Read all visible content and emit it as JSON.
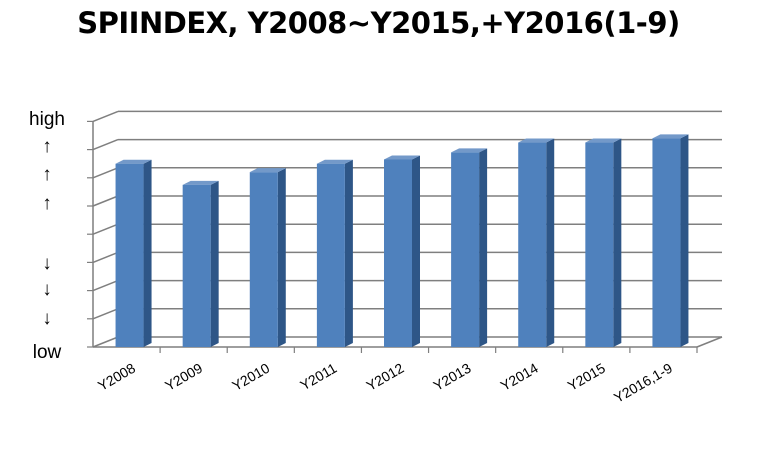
{
  "chart_data": {
    "type": "bar",
    "title": "SPIINDEX, Y2008~Y2015,+Y2016(1-9)",
    "categories": [
      "Y2008",
      "Y2009",
      "Y2010",
      "Y2011",
      "Y2012",
      "Y2013",
      "Y2014",
      "Y2015",
      "Y2016,1-9"
    ],
    "values": [
      65,
      57.5,
      62,
      65,
      66.5,
      69,
      72.5,
      72.5,
      74
    ],
    "ylim": [
      0,
      80
    ],
    "y_axis_labels": [
      "high",
      "↑",
      "↑",
      "↑",
      "↓",
      "↓",
      "↓",
      "low"
    ],
    "grid": true,
    "style": "3d-column",
    "colors": {
      "bar_front": "#4f81bd",
      "bar_side": "#2e5687",
      "bar_top": "#7399c9",
      "grid": "#7f7f7f"
    }
  }
}
